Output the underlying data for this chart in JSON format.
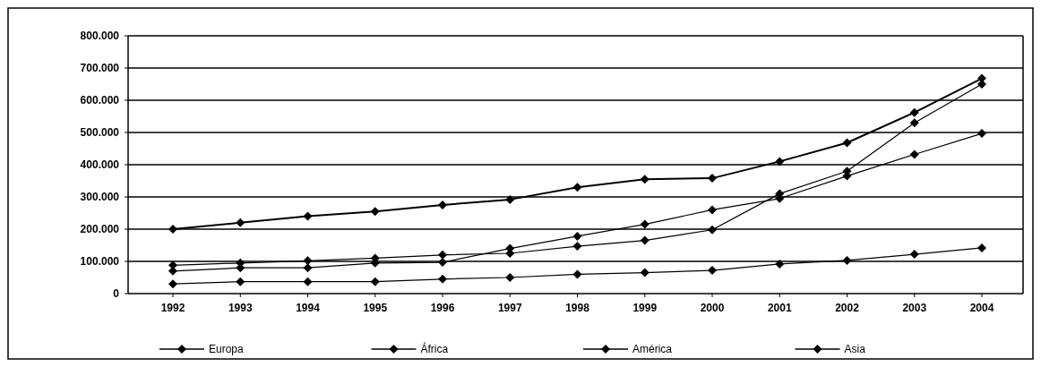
{
  "chart_data": {
    "type": "line",
    "categories": [
      "1992",
      "1993",
      "1994",
      "1995",
      "1996",
      "1997",
      "1998",
      "1999",
      "2000",
      "2001",
      "2002",
      "2003",
      "2004"
    ],
    "series": [
      {
        "name": "Europa",
        "color": "#000000",
        "values": [
          200000,
          220000,
          240000,
          255000,
          275000,
          292000,
          330000,
          355000,
          358000,
          410000,
          468000,
          562000,
          668000
        ]
      },
      {
        "name": "África",
        "color": "#000000",
        "values": [
          30000,
          37000,
          37000,
          37000,
          45000,
          50000,
          60000,
          65000,
          72000,
          92000,
          103000,
          122000,
          142000
        ]
      },
      {
        "name": "América",
        "color": "#000000",
        "values": [
          88000,
          95000,
          102000,
          110000,
          120000,
          125000,
          147000,
          165000,
          198000,
          310000,
          380000,
          530000,
          650000
        ]
      },
      {
        "name": "Asia",
        "color": "#000000",
        "values": [
          70000,
          80000,
          80000,
          95000,
          97000,
          140000,
          178000,
          215000,
          260000,
          295000,
          365000,
          432000,
          497000
        ]
      }
    ],
    "ylim": [
      0,
      800000
    ],
    "yticks": [
      {
        "value": 0,
        "label": "0"
      },
      {
        "value": 100000,
        "label": "100.000"
      },
      {
        "value": 200000,
        "label": "200.000"
      },
      {
        "value": 300000,
        "label": "300.000"
      },
      {
        "value": 400000,
        "label": "400.000"
      },
      {
        "value": 500000,
        "label": "500.000"
      },
      {
        "value": 600000,
        "label": "600.000"
      },
      {
        "value": 700000,
        "label": "700.000"
      },
      {
        "value": 800000,
        "label": "800.000"
      }
    ],
    "grid": "y",
    "legend": "bottom",
    "marker": "diamond",
    "line_style": "solid"
  }
}
